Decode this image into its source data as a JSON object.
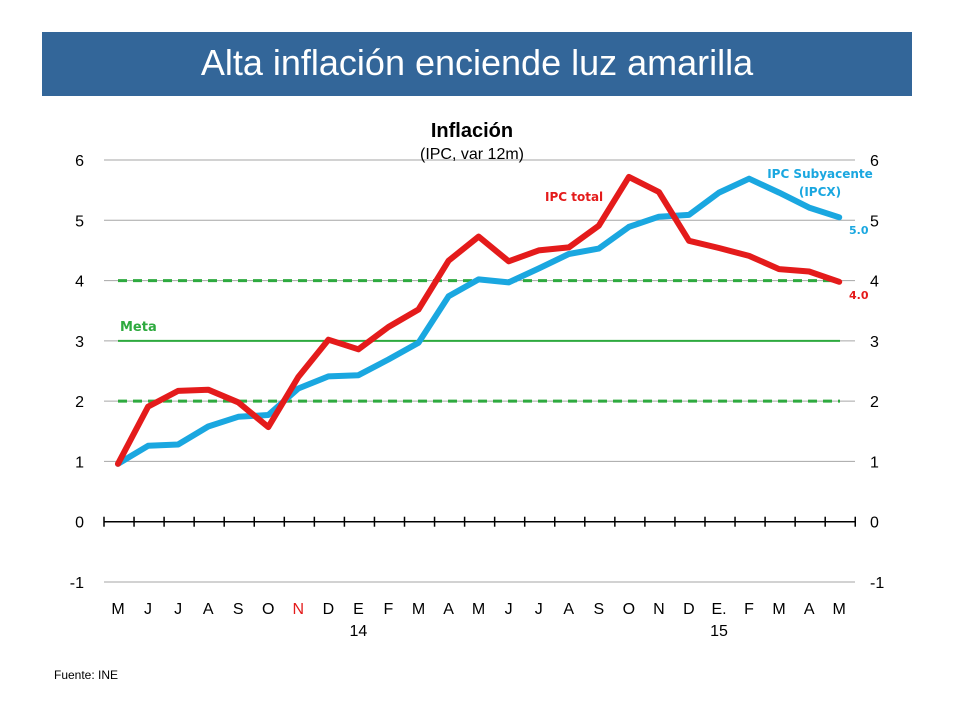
{
  "header": {
    "title": "Alta inflación enciende luz amarilla"
  },
  "chart_data": {
    "type": "line",
    "title": "Inflación",
    "subtitle": "(IPC, var 12m)",
    "categories": [
      "M",
      "J",
      "J",
      "A",
      "S",
      "O",
      "N",
      "D",
      "E",
      "F",
      "M",
      "A",
      "M",
      "J",
      "J",
      "A",
      "S",
      "O",
      "N",
      "D",
      "E.",
      "F",
      "M",
      "A",
      "M"
    ],
    "year_labels": [
      "14",
      "15"
    ],
    "ylim": [
      -1,
      6
    ],
    "yticks": [
      -1,
      0,
      1,
      2,
      3,
      4,
      5,
      6
    ],
    "grid": true,
    "series": [
      {
        "name": "IPC total",
        "color": "#e41b1b",
        "values": [
          0.96,
          1.91,
          2.17,
          2.19,
          1.98,
          1.57,
          2.4,
          3.02,
          2.86,
          3.23,
          3.52,
          4.33,
          4.73,
          4.32,
          4.5,
          4.55,
          4.91,
          5.72,
          5.47,
          4.66,
          4.54,
          4.41,
          4.19,
          4.15,
          3.98
        ],
        "end_label": "4.0"
      },
      {
        "name": "IPC Subyacente (IPCX)",
        "name_lines": [
          "IPC Subyacente",
          "(IPCX)"
        ],
        "color": "#1aa7e0",
        "values": [
          0.96,
          1.26,
          1.28,
          1.58,
          1.74,
          1.77,
          2.21,
          2.41,
          2.43,
          2.69,
          2.97,
          3.74,
          4.02,
          3.97,
          4.2,
          4.44,
          4.53,
          4.89,
          5.06,
          5.09,
          5.46,
          5.69,
          5.46,
          5.21,
          5.05
        ],
        "end_label": "5.0"
      }
    ],
    "reference_lines": [
      {
        "label": "Meta",
        "value": 3,
        "style": "solid",
        "color": "#2eaa3f"
      },
      {
        "value": 2,
        "style": "dashed",
        "color": "#2eaa3f"
      },
      {
        "value": 4,
        "style": "dashed",
        "color": "#2eaa3f"
      }
    ]
  },
  "footer": {
    "source": "Fuente: INE"
  }
}
